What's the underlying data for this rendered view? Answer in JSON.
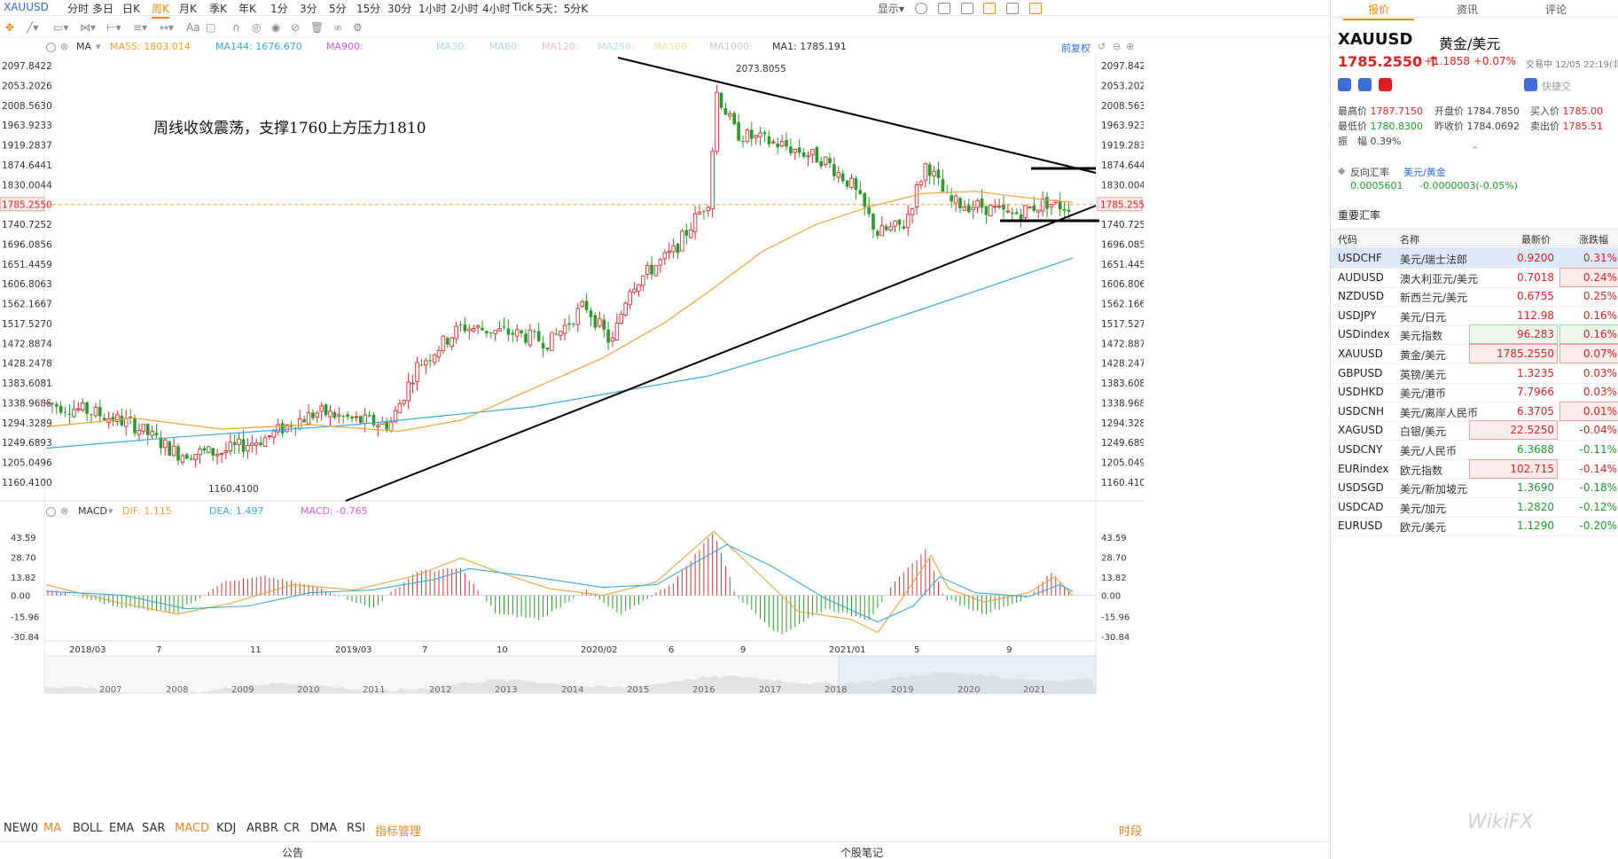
{
  "symbol": "XAUUSD",
  "periods": [
    "分时",
    "多日",
    "日K",
    "周K",
    "月K",
    "季K",
    "年K",
    "1分",
    "3分",
    "5分",
    "15分",
    "30分",
    "1小时",
    "2小时",
    "4小时",
    "Tick",
    "5天：5分K"
  ],
  "active_period": "周K",
  "toolbar_right": {
    "display_label": "显示"
  },
  "ma_header": {
    "label": "MA",
    "items": [
      {
        "text": "MA55: 1803.014",
        "color": "#e8a33a"
      },
      {
        "text": "MA144: 1676.670",
        "color": "#3aa9d6"
      },
      {
        "text": "MA900:",
        "color": "#d65ad6"
      },
      {
        "text": "MA30:",
        "color": "#b0d8ee"
      },
      {
        "text": "MA60:",
        "color": "#b0d8ee"
      },
      {
        "text": "MA120:",
        "color": "#f0c0c0"
      },
      {
        "text": "MA250:",
        "color": "#b8e0f0"
      },
      {
        "text": "MA500:",
        "color": "#f5e0a0"
      },
      {
        "text": "MA1000:",
        "color": "#c8c8e8"
      },
      {
        "text": "MA1: 1785.191",
        "color": "#333333"
      }
    ],
    "adjust_label": "前复权"
  },
  "annotation": "周线收敛震荡，支撑1760上方压力1810",
  "price_axis": [
    "2097.8422",
    "2053.2026",
    "2008.5630",
    "1963.9233",
    "1919.2837",
    "1874.6441",
    "1830.0044",
    "1785.2550",
    "1740.7252",
    "1696.0856",
    "1651.4459",
    "1606.8063",
    "1562.1667",
    "1517.5270",
    "1472.8874",
    "1428.2478",
    "1383.6081",
    "1338.9685",
    "1294.3289",
    "1249.6893",
    "1205.0496",
    "1160.4100"
  ],
  "current_price_tag": "1785.2550",
  "high_label": "2073.8055",
  "low_label": "1160.4100",
  "macd_header": {
    "label": "MACD",
    "dif": "DIF: 1.115",
    "dea": "DEA: 1.497",
    "macd": "MACD: -0.765"
  },
  "macd_axis": [
    "43.59",
    "28.70",
    "13.82",
    "0.00",
    "-15.96",
    "-30.84"
  ],
  "time_axis": [
    "2018/03",
    "7",
    "11",
    "2019/03",
    "7",
    "10",
    "2020/02",
    "6",
    "9",
    "2021/01",
    "5",
    "9"
  ],
  "overview_years": [
    "2007",
    "2008",
    "2009",
    "2010",
    "2011",
    "2012",
    "2013",
    "2014",
    "2015",
    "2016",
    "2017",
    "2018",
    "2019",
    "2020",
    "2021"
  ],
  "indicator_tabs": [
    "NEW0",
    "MA",
    "BOLL",
    "EMA",
    "SAR",
    "MACD",
    "KDJ",
    "ARBR",
    "CR",
    "DMA",
    "RSI",
    "指标管理"
  ],
  "active_tabs": [
    "MA",
    "MACD"
  ],
  "right_link": "时段",
  "footer": {
    "left": "公告",
    "right": "个股笔记"
  },
  "panel": {
    "tabs": [
      "报价",
      "资讯",
      "评论"
    ],
    "active_tab": "报价",
    "code": "XAUUSD",
    "name": "黄金/美元",
    "price": "1785.2550",
    "change": "+1.1858",
    "change_pct": "+0.07%",
    "status": "交易中 12/05 22:19(北",
    "quick_trade": "快捷交",
    "high_label": "最高价",
    "high": "1787.7150",
    "open_label": "开盘价",
    "open": "1784.7850",
    "buy_label": "买入价",
    "buy": "1785.00",
    "low_label": "最低价",
    "low": "1780.8300",
    "prev_label": "昨收价",
    "prev": "1784.0692",
    "sell_label": "卖出价",
    "sell": "1785.51",
    "amp_label": "振　幅",
    "amp": "0.39%",
    "reverse_label": "反向汇率",
    "reverse_pair": "美元/黄金",
    "reverse_value": "0.0005601",
    "reverse_change": "-0.0000003(-0.05%)",
    "section_title": "重要汇率",
    "table_headers": [
      "代码",
      "名称",
      "最新价",
      "涨跌幅"
    ],
    "rows": [
      {
        "code": "USDCHF",
        "name": "美元/瑞士法郎",
        "price": "0.9200",
        "pct": "0.31%",
        "dir": "up",
        "sel": true,
        "pbox": false,
        "cbox": false
      },
      {
        "code": "AUDUSD",
        "name": "澳大利亚元/美元",
        "price": "0.7018",
        "pct": "0.24%",
        "dir": "up",
        "sel": false,
        "pbox": false,
        "cbox": true
      },
      {
        "code": "NZDUSD",
        "name": "新西兰元/美元",
        "price": "0.6755",
        "pct": "0.25%",
        "dir": "up",
        "sel": false,
        "pbox": false,
        "cbox": false
      },
      {
        "code": "USDJPY",
        "name": "美元/日元",
        "price": "112.98",
        "pct": "0.16%",
        "dir": "up",
        "sel": false,
        "pbox": false,
        "cbox": false
      },
      {
        "code": "USDindex",
        "name": "美元指数",
        "price": "96.283",
        "pct": "0.16%",
        "dir": "up",
        "sel": false,
        "pbox": true,
        "cbox": true,
        "boxgreen": true
      },
      {
        "code": "XAUUSD",
        "name": "黄金/美元",
        "price": "1785.2550",
        "pct": "0.07%",
        "dir": "up",
        "sel": false,
        "pbox": true,
        "cbox": true
      },
      {
        "code": "GBPUSD",
        "name": "英镑/美元",
        "price": "1.3235",
        "pct": "0.03%",
        "dir": "up",
        "sel": false,
        "pbox": false,
        "cbox": false
      },
      {
        "code": "USDHKD",
        "name": "美元/港币",
        "price": "7.7966",
        "pct": "0.03%",
        "dir": "up",
        "sel": false,
        "pbox": false,
        "cbox": false
      },
      {
        "code": "USDCNH",
        "name": "美元/离岸人民币",
        "price": "6.3705",
        "pct": "0.01%",
        "dir": "up",
        "sel": false,
        "pbox": false,
        "cbox": true
      },
      {
        "code": "XAGUSD",
        "name": "白银/美元",
        "price": "22.5250",
        "pct": "-0.04%",
        "dir": "up",
        "sel": false,
        "pbox": true,
        "cbox": false
      },
      {
        "code": "USDCNY",
        "name": "美元/人民币",
        "price": "6.3688",
        "pct": "-0.11%",
        "dir": "dn",
        "sel": false,
        "pbox": false,
        "cbox": false
      },
      {
        "code": "EURindex",
        "name": "欧元指数",
        "price": "102.715",
        "pct": "-0.14%",
        "dir": "up",
        "sel": false,
        "pbox": true,
        "cbox": false
      },
      {
        "code": "USDSGD",
        "name": "美元/新加坡元",
        "price": "1.3690",
        "pct": "-0.18%",
        "dir": "dn",
        "sel": false,
        "pbox": false,
        "cbox": false
      },
      {
        "code": "USDCAD",
        "name": "美元/加元",
        "price": "1.2820",
        "pct": "-0.12%",
        "dir": "dn",
        "sel": false,
        "pbox": false,
        "cbox": false
      },
      {
        "code": "EURUSD",
        "name": "欧元/美元",
        "price": "1.1290",
        "pct": "-0.20%",
        "dir": "dn",
        "sel": false,
        "pbox": false,
        "cbox": false
      }
    ]
  },
  "watermark": "WikiFX",
  "colors": {
    "accent": "#e8871a",
    "up": "#e02020",
    "down": "#1a9a2a",
    "ma55": "#e8a33a",
    "ma144": "#3aa9d6"
  }
}
